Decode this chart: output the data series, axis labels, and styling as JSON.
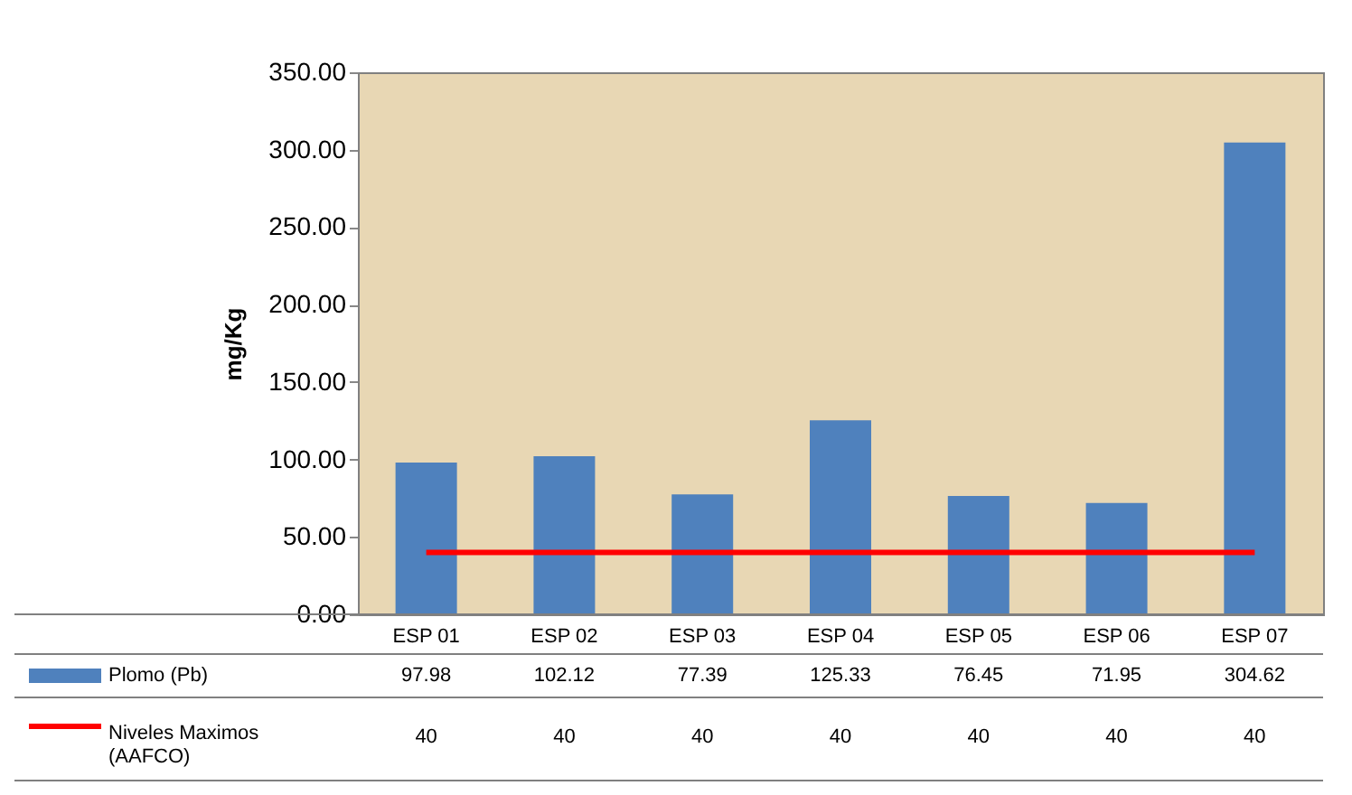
{
  "chart_data": {
    "type": "bar",
    "ylabel": "mg/Kg",
    "categories": [
      "ESP 01",
      "ESP 02",
      "ESP 03",
      "ESP 04",
      "ESP 05",
      "ESP 06",
      "ESP 07"
    ],
    "series": [
      {
        "name": "Plomo (Pb)",
        "color": "#4f81bd",
        "values": [
          97.98,
          102.12,
          77.39,
          125.33,
          76.45,
          71.95,
          304.62
        ]
      },
      {
        "name": "Niveles Maximos (AAFCO)",
        "color": "#ff0000",
        "type": "line",
        "values": [
          40,
          40,
          40,
          40,
          40,
          40,
          40
        ]
      }
    ],
    "ylim": [
      0,
      350
    ],
    "yticks": [
      {
        "value": 0,
        "label": "0.00"
      },
      {
        "value": 50,
        "label": "50.00"
      },
      {
        "value": 100,
        "label": "100.00"
      },
      {
        "value": 150,
        "label": "150.00"
      },
      {
        "value": 200,
        "label": "200.00"
      },
      {
        "value": 250,
        "label": "250.00"
      },
      {
        "value": 300,
        "label": "300.00"
      },
      {
        "value": 350,
        "label": "350.00"
      }
    ],
    "grid": false,
    "legend": "bottom left",
    "data_labels": true
  }
}
